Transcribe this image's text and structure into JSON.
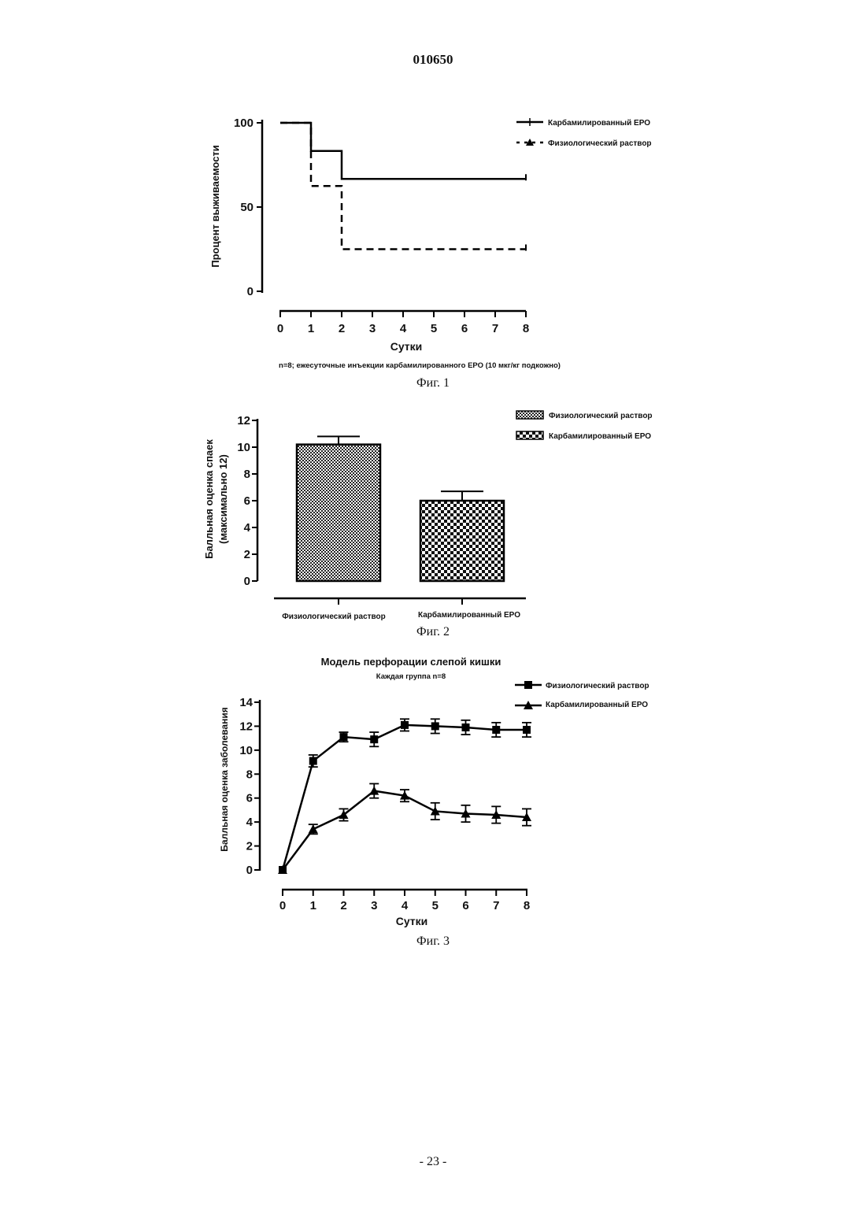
{
  "page": {
    "header": "010650",
    "footer": "- 23 -"
  },
  "figures": [
    {
      "caption": "Фиг. 1",
      "note": "n=8; ежесуточные инъекции карбамилированного ЕРО (10 мкг/кг подкожно)"
    },
    {
      "caption": "Фиг. 2"
    },
    {
      "caption": "Фиг. 3"
    }
  ],
  "chart_data": [
    {
      "type": "line",
      "style": "survival-step",
      "title": "",
      "xlabel": "Сутки",
      "ylabel": "Процент выживаемости",
      "xlim": [
        0,
        8
      ],
      "ylim": [
        0,
        100
      ],
      "xticks": [
        "0",
        "1",
        "2",
        "3",
        "4",
        "5",
        "6",
        "7",
        "8"
      ],
      "yticks": [
        "0",
        "50",
        "100"
      ],
      "legend_position": "top-right",
      "series": [
        {
          "name": "Карбамилированный ЕРО",
          "line": "solid",
          "x": [
            0,
            1,
            2,
            8
          ],
          "y": [
            100,
            83.3,
            66.7,
            66.7
          ]
        },
        {
          "name": "Физиологический раствор",
          "line": "dashed",
          "x": [
            0,
            1,
            2,
            8
          ],
          "y": [
            100,
            62.5,
            25,
            25
          ]
        }
      ]
    },
    {
      "type": "bar",
      "title": "",
      "xlabel": "",
      "ylabel": "Балльная оценка спаек",
      "ylabel2": "(максимально 12)",
      "ylim": [
        0,
        12
      ],
      "yticks": [
        "0",
        "2",
        "4",
        "6",
        "8",
        "10",
        "12"
      ],
      "categories": [
        "Физиологический раствор",
        "Карбамилированный ЕРО"
      ],
      "values": [
        10.2,
        6.0
      ],
      "errors": [
        0.6,
        0.7
      ],
      "legend_position": "top-right",
      "legend": [
        "Физиологический раствор",
        "Карбамилированный ЕРО"
      ]
    },
    {
      "type": "line",
      "title": "Модель перфорации слепой кишки",
      "subtitle": "Каждая группа n=8",
      "xlabel": "Сутки",
      "ylabel": "Балльная оценка заболевания",
      "xlim": [
        0,
        8
      ],
      "ylim": [
        0,
        14
      ],
      "xticks": [
        "0",
        "1",
        "2",
        "3",
        "4",
        "5",
        "6",
        "7",
        "8"
      ],
      "yticks": [
        "0",
        "2",
        "4",
        "6",
        "8",
        "10",
        "12",
        "14"
      ],
      "legend_position": "top-right",
      "series": [
        {
          "name": "Физиологический раствор",
          "marker": "square",
          "x": [
            0,
            1,
            2,
            3,
            4,
            5,
            6,
            7,
            8
          ],
          "y": [
            0,
            9.1,
            11.1,
            10.9,
            12.1,
            12.0,
            11.9,
            11.7,
            11.7
          ],
          "err": [
            0,
            0.5,
            0.4,
            0.6,
            0.5,
            0.6,
            0.6,
            0.6,
            0.6
          ]
        },
        {
          "name": "Карбамилированный ЕРО",
          "marker": "triangle",
          "x": [
            0,
            1,
            2,
            3,
            4,
            5,
            6,
            7,
            8
          ],
          "y": [
            0,
            3.4,
            4.6,
            6.6,
            6.2,
            4.9,
            4.7,
            4.6,
            4.4
          ],
          "err": [
            0,
            0.4,
            0.5,
            0.6,
            0.5,
            0.7,
            0.7,
            0.7,
            0.7
          ]
        }
      ]
    }
  ]
}
